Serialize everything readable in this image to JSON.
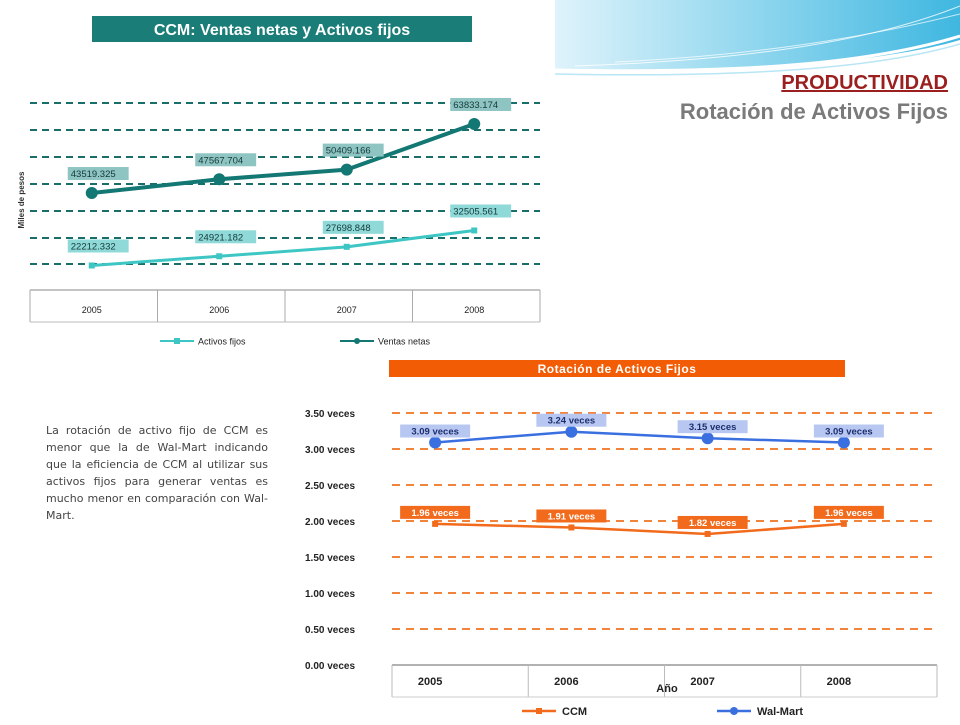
{
  "slide": {
    "heading": "PRODUCTIVIDAD",
    "subheading": "Rotación de Activos Fijos",
    "body": "La rotación de activo fijo de CCM es menor que la de Wal-Mart indicando que la eficiencia de CCM al utilizar sus activos fijos para generar ventas es mucho menor en comparación con Wal-Mart."
  },
  "colors": {
    "teal_dark": "#137773",
    "teal_light": "#3dc6c4",
    "orange": "#f26b1d",
    "blue": "#3a6fe0",
    "title_bar_teal": "#1a7d78",
    "title_bar_orange": "#f25c05",
    "heading": "#9c1f1f",
    "subheading": "#7a7a7a"
  },
  "chart_data": [
    {
      "type": "line",
      "title": "CCM: Ventas netas y Activos fijos",
      "ylabel": "Miles de pesos",
      "categories": [
        "2005",
        "2006",
        "2007",
        "2008"
      ],
      "ylim": [
        15000,
        70000
      ],
      "grid": true,
      "legend": "bottom",
      "series": [
        {
          "name": "Activos fijos",
          "values": [
            22212.332,
            24921.182,
            27698.848,
            32505.561
          ],
          "labels": [
            "22212.332",
            "24921.182",
            "27698.848",
            "32505.561"
          ],
          "color": "#3dc6c4",
          "marker": "square"
        },
        {
          "name": "Ventas netas",
          "values": [
            43519.325,
            47567.704,
            50409.166,
            63833.174
          ],
          "labels": [
            "43519.325",
            "47567.704",
            "50409.166",
            "63833.174"
          ],
          "color": "#137773",
          "marker": "circle"
        }
      ]
    },
    {
      "type": "line",
      "title": "Rotación de Activos Fijos",
      "xlabel": "Año",
      "categories": [
        "2005",
        "2006",
        "2007",
        "2008"
      ],
      "ylim": [
        0,
        3.5
      ],
      "yticks": [
        "0.00 veces",
        "0.50 veces",
        "1.00 veces",
        "1.50 veces",
        "2.00 veces",
        "2.50 veces",
        "3.00 veces",
        "3.50 veces"
      ],
      "grid": true,
      "legend": "bottom",
      "series": [
        {
          "name": "CCM",
          "values": [
            1.96,
            1.91,
            1.82,
            1.96
          ],
          "labels": [
            "1.96 veces",
            "1.91 veces",
            "1.82 veces",
            "1.96 veces"
          ],
          "color": "#f26b1d",
          "marker": "square"
        },
        {
          "name": "Wal-Mart",
          "values": [
            3.09,
            3.24,
            3.15,
            3.09
          ],
          "labels": [
            "3.09 veces",
            "3.24 veces",
            "3.15 veces",
            "3.09 veces"
          ],
          "color": "#3a6fe0",
          "marker": "circle"
        }
      ]
    }
  ]
}
